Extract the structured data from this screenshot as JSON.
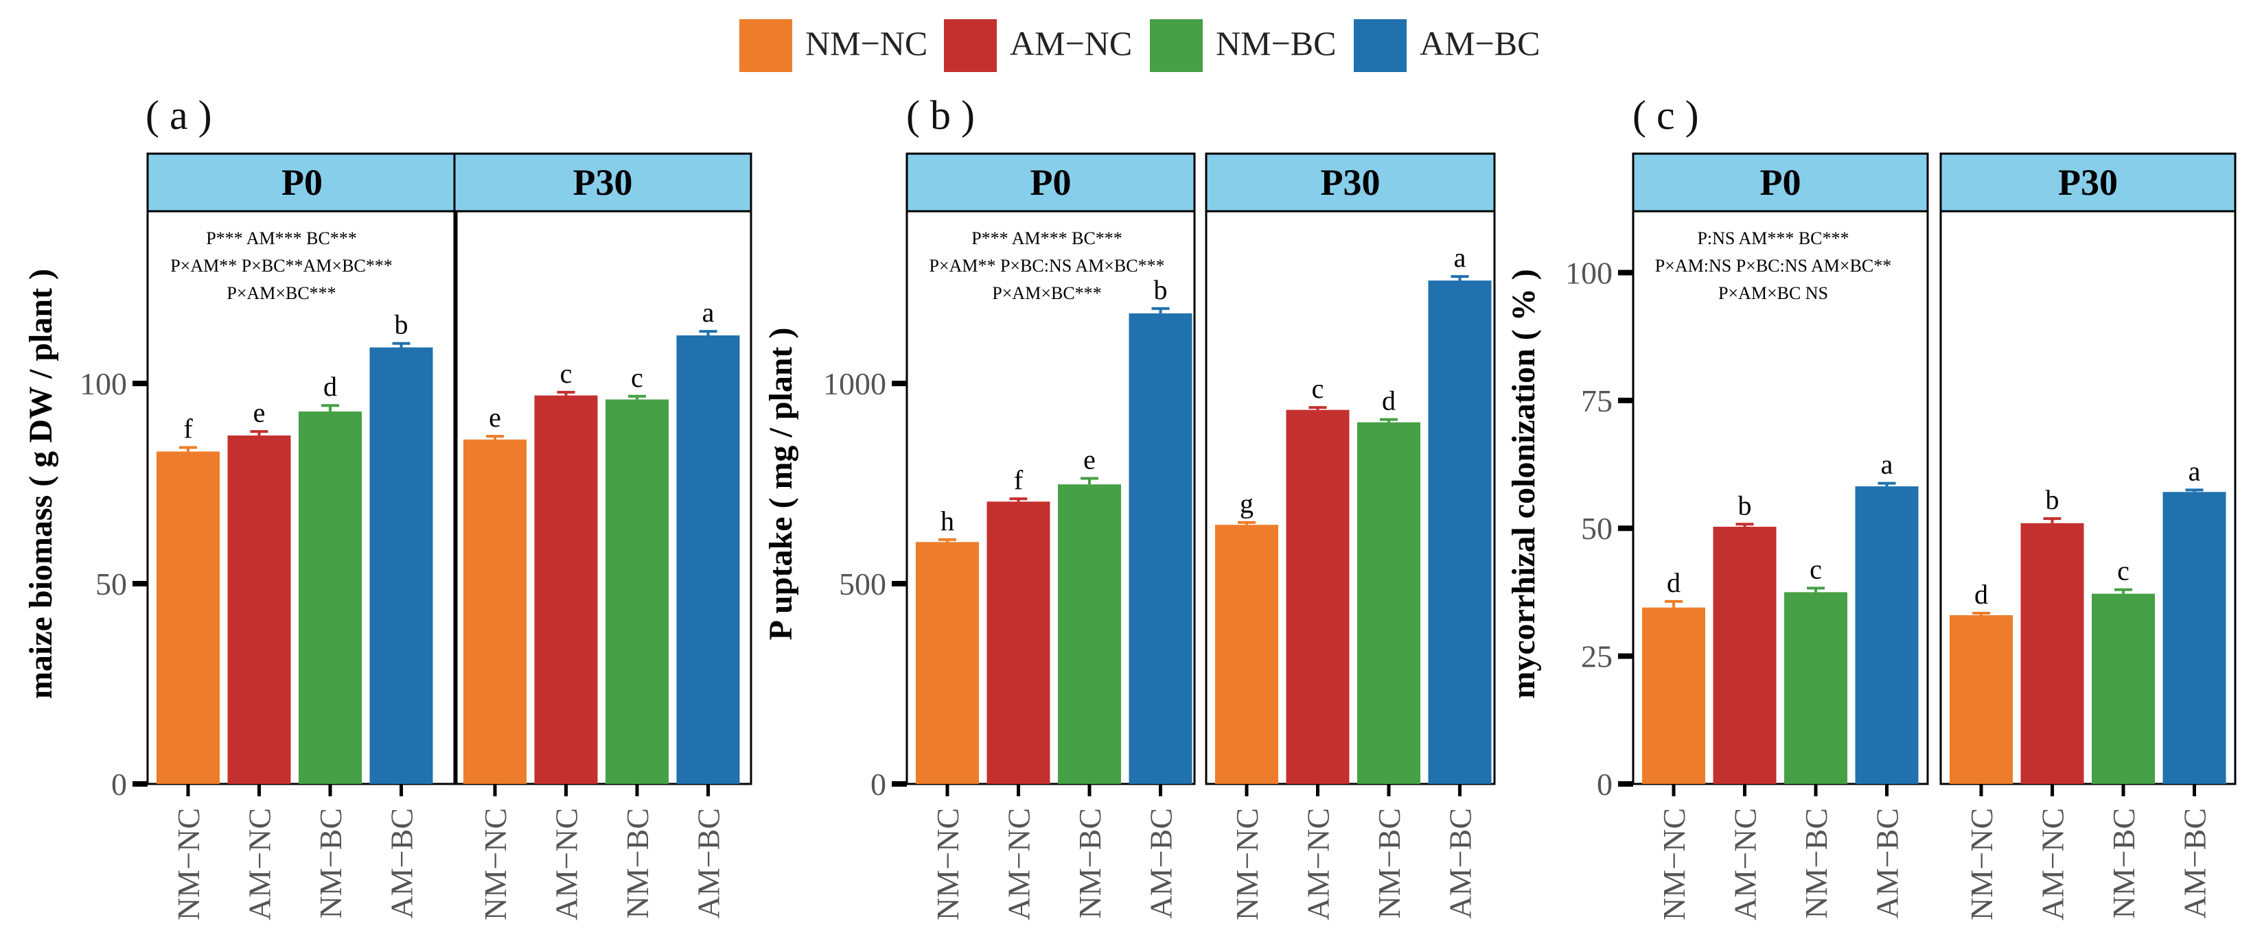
{
  "figure": {
    "legend": [
      {
        "label": "NM−NC",
        "color": "#ED7D2A"
      },
      {
        "label": "AM−NC",
        "color": "#C4302F"
      },
      {
        "label": "NM−BC",
        "color": "#46A045"
      },
      {
        "label": "AM−BC",
        "color": "#2071AE"
      }
    ],
    "colors": {
      "strip": "#87CEEB",
      "axis": "#000000"
    }
  },
  "chart_data": [
    {
      "type": "bar",
      "panel_label": "( a )",
      "ylabel": "maize biomass ( g DW / plant )",
      "ylim": [
        0,
        143
      ],
      "yticks": [
        0,
        50,
        100
      ],
      "categories": [
        "NM−NC",
        "AM−NC",
        "NM−BC",
        "AM−BC"
      ],
      "annotation": [
        "P*** AM*** BC***",
        "P×AM** P×BC**AM×BC***",
        "P×AM×BC***"
      ],
      "facets": [
        {
          "strip": "P0",
          "values": [
            83,
            87,
            93,
            109
          ],
          "errors": [
            1.0,
            1.0,
            1.5,
            1.0
          ],
          "letters": [
            "f",
            "e",
            "d",
            "b"
          ]
        },
        {
          "strip": "P30",
          "values": [
            86,
            97,
            96,
            112
          ],
          "errors": [
            0.8,
            0.8,
            0.8,
            1.0
          ],
          "letters": [
            "e",
            "c",
            "c",
            "a"
          ]
        }
      ]
    },
    {
      "type": "bar",
      "panel_label": "( b )",
      "ylabel": "P uptake ( mg / plant )",
      "ylim": [
        0,
        1430
      ],
      "yticks": [
        0,
        500,
        1000
      ],
      "categories": [
        "NM−NC",
        "AM−NC",
        "NM−BC",
        "AM−BC"
      ],
      "annotation": [
        "P*** AM*** BC***",
        "P×AM** P×BC:NS AM×BC***",
        "P×AM×BC***"
      ],
      "facets": [
        {
          "strip": "P0",
          "values": [
            604,
            705,
            748,
            1175
          ],
          "errors": [
            6,
            7,
            15,
            12
          ],
          "letters": [
            "h",
            "f",
            "e",
            "b"
          ]
        },
        {
          "strip": "P30",
          "values": [
            647,
            934,
            903,
            1257
          ],
          "errors": [
            6,
            6,
            7,
            10
          ],
          "letters": [
            "g",
            "c",
            "d",
            "a"
          ]
        }
      ]
    },
    {
      "type": "bar",
      "panel_label": "( c )",
      "ylabel": "mycorrhizal colonization ( % )",
      "ylim": [
        0,
        112
      ],
      "yticks": [
        0,
        25,
        50,
        75,
        100
      ],
      "categories": [
        "NM−NC",
        "AM−NC",
        "NM−BC",
        "AM−BC"
      ],
      "annotation": [
        "P:NS AM*** BC***",
        "P×AM:NS P×BC:NS AM×BC**",
        "P×AM×BC NS"
      ],
      "facets": [
        {
          "strip": "P0",
          "values": [
            34.5,
            50.3,
            37.5,
            58.2
          ],
          "errors": [
            1.2,
            0.5,
            0.8,
            0.6
          ],
          "letters": [
            "d",
            "b",
            "c",
            "a"
          ]
        },
        {
          "strip": "P30",
          "values": [
            33.0,
            51.0,
            37.2,
            57.1
          ],
          "errors": [
            0.4,
            0.9,
            0.8,
            0.4
          ],
          "letters": [
            "d",
            "b",
            "c",
            "a"
          ]
        }
      ]
    }
  ]
}
